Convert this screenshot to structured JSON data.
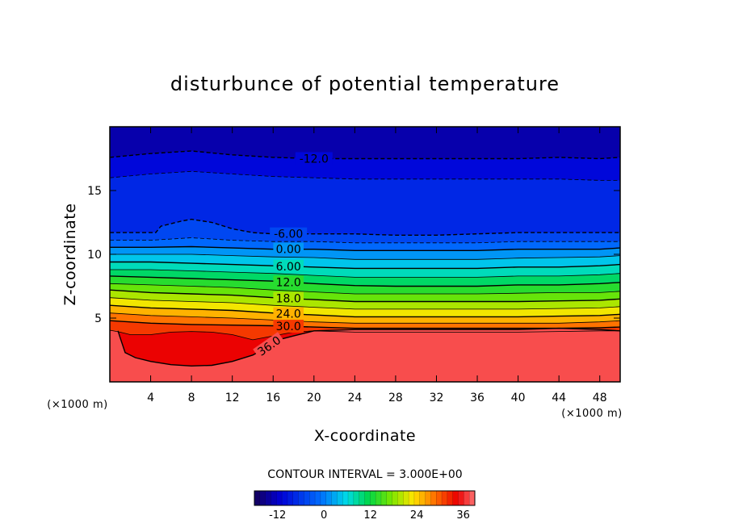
{
  "chart_data": {
    "type": "heatmap",
    "subtype": "filled-contour",
    "title": "disturbunce of potential temperature",
    "xlabel": "X-coordinate",
    "ylabel": "Z-coordinate",
    "x_unit_left": "(×1000 m)",
    "x_unit_right": "(×1000 m)",
    "xlim": [
      0,
      50
    ],
    "ylim": [
      0,
      20
    ],
    "x_ticks": [
      4,
      8,
      12,
      16,
      20,
      24,
      28,
      32,
      36,
      40,
      44,
      48
    ],
    "y_ticks": [
      5,
      10,
      15
    ],
    "contour_interval_label": "CONTOUR INTERVAL = 3.000E+00",
    "contour_interval": 3,
    "color_range": [
      -18,
      39
    ],
    "colorbar_ticks": [
      -12,
      0,
      12,
      24,
      36
    ],
    "colorbar_tick_labels": [
      "-12",
      "0",
      "12",
      "24",
      "36"
    ],
    "contours": [
      {
        "value": -12,
        "label": "-12.0",
        "dashed": true,
        "label_x": 20,
        "points": [
          [
            0,
            17.6
          ],
          [
            4,
            17.9
          ],
          [
            8,
            18.1
          ],
          [
            12,
            17.8
          ],
          [
            16,
            17.6
          ],
          [
            20,
            17.5
          ],
          [
            24,
            17.5
          ],
          [
            28,
            17.5
          ],
          [
            32,
            17.5
          ],
          [
            36,
            17.5
          ],
          [
            40,
            17.5
          ],
          [
            44,
            17.6
          ],
          [
            48,
            17.5
          ],
          [
            50,
            17.6
          ]
        ]
      },
      {
        "value": -9,
        "label": "",
        "dashed": true,
        "points": [
          [
            0,
            16.0
          ],
          [
            4,
            16.3
          ],
          [
            8,
            16.5
          ],
          [
            12,
            16.3
          ],
          [
            16,
            16.1
          ],
          [
            20,
            16.0
          ],
          [
            24,
            15.9
          ],
          [
            28,
            15.9
          ],
          [
            32,
            15.9
          ],
          [
            36,
            15.9
          ],
          [
            40,
            15.9
          ],
          [
            44,
            15.9
          ],
          [
            48,
            15.8
          ],
          [
            50,
            15.8
          ]
        ]
      },
      {
        "value": -6,
        "label": "-6.00",
        "dashed": true,
        "label_x": 17.5,
        "points": [
          [
            0,
            11.7
          ],
          [
            4.5,
            11.7
          ],
          [
            5,
            12.2
          ],
          [
            7,
            12.6
          ],
          [
            8,
            12.75
          ],
          [
            10,
            12.5
          ],
          [
            12,
            12.0
          ],
          [
            14,
            11.7
          ],
          [
            16,
            11.6
          ],
          [
            20,
            11.6
          ],
          [
            24,
            11.6
          ],
          [
            28,
            11.5
          ],
          [
            32,
            11.5
          ],
          [
            36,
            11.6
          ],
          [
            40,
            11.7
          ],
          [
            44,
            11.7
          ],
          [
            48,
            11.7
          ],
          [
            50,
            11.7
          ]
        ]
      },
      {
        "value": -3,
        "label": "",
        "dashed": true,
        "points": [
          [
            0,
            11.1
          ],
          [
            4,
            11.1
          ],
          [
            8,
            11.3
          ],
          [
            12,
            11.1
          ],
          [
            16,
            11.0
          ],
          [
            20,
            11.0
          ],
          [
            24,
            10.9
          ],
          [
            28,
            10.9
          ],
          [
            32,
            10.9
          ],
          [
            36,
            10.9
          ],
          [
            40,
            11.0
          ],
          [
            44,
            11.0
          ],
          [
            48,
            11.0
          ],
          [
            50,
            11.0
          ]
        ]
      },
      {
        "value": 0,
        "label": "0.00",
        "dashed": false,
        "label_x": 17.5,
        "points": [
          [
            0,
            10.55
          ],
          [
            4,
            10.55
          ],
          [
            8,
            10.6
          ],
          [
            12,
            10.5
          ],
          [
            16,
            10.4
          ],
          [
            20,
            10.4
          ],
          [
            24,
            10.3
          ],
          [
            28,
            10.3
          ],
          [
            32,
            10.3
          ],
          [
            36,
            10.3
          ],
          [
            40,
            10.4
          ],
          [
            44,
            10.4
          ],
          [
            48,
            10.4
          ],
          [
            50,
            10.5
          ]
        ]
      },
      {
        "value": 3,
        "label": "",
        "dashed": false,
        "points": [
          [
            0,
            10.0
          ],
          [
            4,
            10.0
          ],
          [
            8,
            10.0
          ],
          [
            12,
            9.9
          ],
          [
            16,
            9.8
          ],
          [
            20,
            9.75
          ],
          [
            24,
            9.6
          ],
          [
            28,
            9.6
          ],
          [
            32,
            9.6
          ],
          [
            36,
            9.6
          ],
          [
            40,
            9.7
          ],
          [
            44,
            9.75
          ],
          [
            48,
            9.8
          ],
          [
            50,
            9.9
          ]
        ]
      },
      {
        "value": 6,
        "label": "6.00",
        "dashed": false,
        "label_x": 17.5,
        "points": [
          [
            0,
            9.4
          ],
          [
            4,
            9.4
          ],
          [
            8,
            9.3
          ],
          [
            12,
            9.2
          ],
          [
            16,
            9.1
          ],
          [
            20,
            9.0
          ],
          [
            24,
            8.9
          ],
          [
            28,
            8.9
          ],
          [
            32,
            8.9
          ],
          [
            36,
            8.9
          ],
          [
            40,
            9.0
          ],
          [
            44,
            9.0
          ],
          [
            48,
            9.1
          ],
          [
            50,
            9.2
          ]
        ]
      },
      {
        "value": 9,
        "label": "",
        "dashed": false,
        "points": [
          [
            0,
            8.8
          ],
          [
            4,
            8.8
          ],
          [
            8,
            8.7
          ],
          [
            12,
            8.6
          ],
          [
            16,
            8.5
          ],
          [
            20,
            8.35
          ],
          [
            24,
            8.2
          ],
          [
            28,
            8.2
          ],
          [
            32,
            8.2
          ],
          [
            36,
            8.2
          ],
          [
            40,
            8.3
          ],
          [
            44,
            8.3
          ],
          [
            48,
            8.4
          ],
          [
            50,
            8.5
          ]
        ]
      },
      {
        "value": 12,
        "label": "12.0",
        "dashed": false,
        "label_x": 17.5,
        "points": [
          [
            0,
            8.3
          ],
          [
            4,
            8.2
          ],
          [
            8,
            8.1
          ],
          [
            12,
            8.0
          ],
          [
            16,
            7.9
          ],
          [
            20,
            7.7
          ],
          [
            24,
            7.55
          ],
          [
            28,
            7.5
          ],
          [
            32,
            7.5
          ],
          [
            36,
            7.5
          ],
          [
            40,
            7.6
          ],
          [
            44,
            7.6
          ],
          [
            48,
            7.7
          ],
          [
            50,
            7.8
          ]
        ]
      },
      {
        "value": 15,
        "label": "",
        "dashed": false,
        "points": [
          [
            0,
            7.7
          ],
          [
            4,
            7.6
          ],
          [
            8,
            7.5
          ],
          [
            12,
            7.4
          ],
          [
            16,
            7.2
          ],
          [
            20,
            7.05
          ],
          [
            24,
            6.9
          ],
          [
            28,
            6.9
          ],
          [
            32,
            6.9
          ],
          [
            36,
            6.9
          ],
          [
            40,
            6.95
          ],
          [
            44,
            7.0
          ],
          [
            48,
            7.0
          ],
          [
            50,
            7.1
          ]
        ]
      },
      {
        "value": 18,
        "label": "18.0",
        "dashed": false,
        "label_x": 17.5,
        "points": [
          [
            0,
            7.2
          ],
          [
            4,
            7.0
          ],
          [
            8,
            6.9
          ],
          [
            12,
            6.8
          ],
          [
            16,
            6.6
          ],
          [
            20,
            6.45
          ],
          [
            24,
            6.3
          ],
          [
            28,
            6.3
          ],
          [
            32,
            6.3
          ],
          [
            36,
            6.3
          ],
          [
            40,
            6.3
          ],
          [
            44,
            6.35
          ],
          [
            48,
            6.4
          ],
          [
            50,
            6.5
          ]
        ]
      },
      {
        "value": 21,
        "label": "",
        "dashed": false,
        "points": [
          [
            0,
            6.6
          ],
          [
            4,
            6.4
          ],
          [
            8,
            6.3
          ],
          [
            12,
            6.2
          ],
          [
            16,
            6.0
          ],
          [
            20,
            5.85
          ],
          [
            24,
            5.7
          ],
          [
            28,
            5.7
          ],
          [
            32,
            5.7
          ],
          [
            36,
            5.7
          ],
          [
            40,
            5.7
          ],
          [
            44,
            5.75
          ],
          [
            48,
            5.8
          ],
          [
            50,
            5.9
          ]
        ]
      },
      {
        "value": 24,
        "label": "24.0",
        "dashed": false,
        "label_x": 17.5,
        "points": [
          [
            0,
            6.0
          ],
          [
            4,
            5.8
          ],
          [
            8,
            5.7
          ],
          [
            12,
            5.6
          ],
          [
            16,
            5.4
          ],
          [
            20,
            5.25
          ],
          [
            24,
            5.1
          ],
          [
            28,
            5.1
          ],
          [
            32,
            5.1
          ],
          [
            36,
            5.1
          ],
          [
            40,
            5.1
          ],
          [
            44,
            5.15
          ],
          [
            48,
            5.2
          ],
          [
            50,
            5.3
          ]
        ]
      },
      {
        "value": 27,
        "label": "",
        "dashed": false,
        "points": [
          [
            0,
            5.4
          ],
          [
            4,
            5.2
          ],
          [
            8,
            5.1
          ],
          [
            12,
            5.0
          ],
          [
            16,
            4.85
          ],
          [
            20,
            4.7
          ],
          [
            24,
            4.6
          ],
          [
            28,
            4.6
          ],
          [
            32,
            4.6
          ],
          [
            36,
            4.6
          ],
          [
            40,
            4.6
          ],
          [
            44,
            4.6
          ],
          [
            48,
            4.7
          ],
          [
            50,
            4.8
          ]
        ]
      },
      {
        "value": 30,
        "label": "30.0",
        "dashed": false,
        "label_x": 17.5,
        "points": [
          [
            0,
            4.8
          ],
          [
            4,
            4.6
          ],
          [
            8,
            4.5
          ],
          [
            12,
            4.45
          ],
          [
            16,
            4.4
          ],
          [
            20,
            4.3
          ],
          [
            24,
            4.2
          ],
          [
            28,
            4.2
          ],
          [
            32,
            4.2
          ],
          [
            36,
            4.2
          ],
          [
            40,
            4.2
          ],
          [
            44,
            4.2
          ],
          [
            48,
            4.25
          ],
          [
            50,
            4.3
          ]
        ]
      },
      {
        "value": 33,
        "label": "",
        "dashed": false,
        "points": [
          [
            0,
            4.05
          ],
          [
            1,
            3.9
          ],
          [
            2,
            3.7
          ],
          [
            4,
            3.7
          ],
          [
            6,
            3.9
          ],
          [
            8,
            3.95
          ],
          [
            10,
            3.9
          ],
          [
            12,
            3.7
          ],
          [
            14,
            3.3
          ],
          [
            16,
            3.6
          ],
          [
            18,
            3.9
          ],
          [
            20,
            4.0
          ],
          [
            24,
            3.9
          ],
          [
            28,
            3.9
          ],
          [
            32,
            3.9
          ],
          [
            36,
            3.9
          ],
          [
            40,
            3.9
          ],
          [
            44,
            3.95
          ],
          [
            48,
            4.0
          ],
          [
            50,
            4.0
          ]
        ]
      },
      {
        "value": 36,
        "label": "36.0",
        "dashed": false,
        "label_x": 15.6,
        "label_angle": -35,
        "points": [
          [
            0.8,
            4.0
          ],
          [
            1,
            3.5
          ],
          [
            1.5,
            2.3
          ],
          [
            2.5,
            1.9
          ],
          [
            4,
            1.6
          ],
          [
            6,
            1.35
          ],
          [
            8,
            1.25
          ],
          [
            10,
            1.3
          ],
          [
            12,
            1.6
          ],
          [
            14,
            2.1
          ],
          [
            16,
            3.0
          ],
          [
            17,
            3.4
          ],
          [
            18,
            3.6
          ],
          [
            20,
            4.0
          ],
          [
            24,
            4.1
          ],
          [
            28,
            4.1
          ],
          [
            32,
            4.1
          ],
          [
            36,
            4.1
          ],
          [
            40,
            4.1
          ],
          [
            44,
            4.2
          ],
          [
            48,
            4.1
          ],
          [
            50,
            4.0
          ]
        ]
      }
    ]
  }
}
